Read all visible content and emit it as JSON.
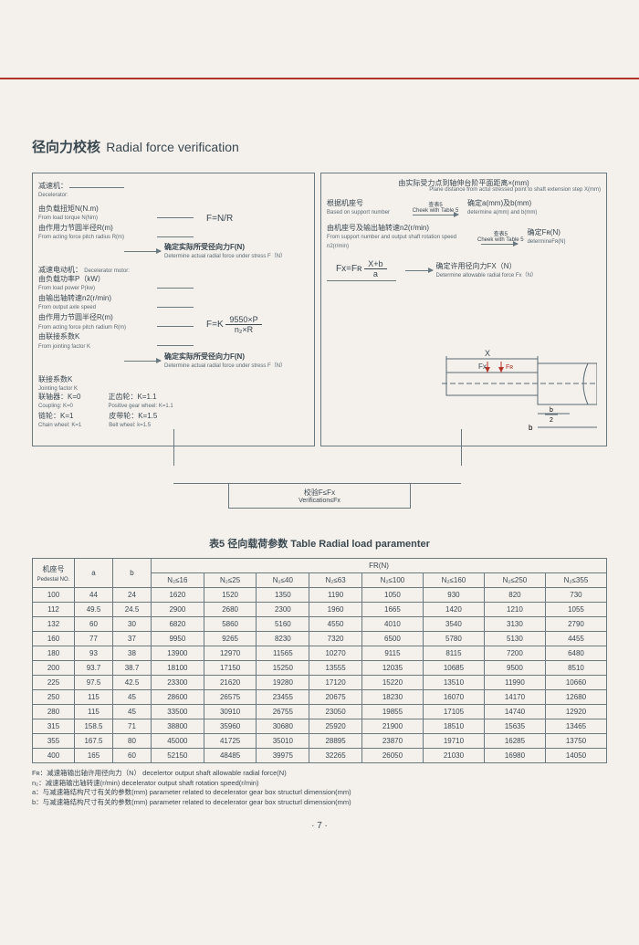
{
  "title_cn": "径向力校核",
  "title_en": "Radial force verification",
  "left": {
    "decel": "减速机：",
    "decel_en": "Decelerator:",
    "load_torque": "由负载扭矩N(N.m)",
    "load_torque_en": "From load torque N(Nm)",
    "pitch_radius": "由作用力节圆半径R(m)",
    "pitch_radius_en": "From acting force pitch radius R(m)",
    "eq_fnr": "F=N/R",
    "determine_f": "确定实际所受径向力F(N)",
    "determine_f_en": "Determine actual radial force under stress F（N）",
    "decel_motor": "减速电动机：",
    "decel_motor_en": "Decelerator motor:",
    "load_power": "由负载功率P（kW）",
    "load_power_en": "From load power P(kw)",
    "axle_speed": "由输出轴转速n2(r/min)",
    "axle_speed_en": "From output axle speed",
    "pitch_radius2": "由作用力节圆半径R(m)",
    "pitch_radius2_en": "From acting force pitch radium R(m)",
    "joint_k": "由联接系数K",
    "joint_k_en": "From jointing factor K",
    "eq_fk": "F=K",
    "eq_fk_num": "9550×P",
    "eq_fk_den": "n₂×R",
    "joint_head": "联接系数K",
    "joint_head_en": "Jointing factor K",
    "coupling": "联轴器：K=0",
    "coupling_en": "Coupling: K=0",
    "chain": "链轮：K=1",
    "chain_en": "Chain wheel: K=1",
    "gear": "正齿轮：K=1.1",
    "gear_en": "Positive gear wheel: K=1.1",
    "belt": "皮带轮：K=1.5",
    "belt_en": "Belt wheel: k=1.5"
  },
  "right": {
    "plane_cn": "由实际受力点到轴伸台阶平面距离×(mm)",
    "plane_en": "Plane distance from actul stressed point to shaft extension step X(mm)",
    "check5": "查表5",
    "check5_en": "Cheek with Table 5",
    "support_no": "根据机座号",
    "support_no_en": "Based on support number",
    "det_ab": "确定a(mm)及b(mm)",
    "det_ab_en": "determine a(mm) and b(mm)",
    "support_speed": "由机座号及输出轴转速n2(r/min)",
    "support_speed_en": "From support number and output shaft rotation speed n2(r/min)",
    "det_frn": "确定Fʀ(N)",
    "det_frn_en": "determineFʀ(N)",
    "eq_fx_lhs": "Fx=Fʀ",
    "eq_fx_num": "X+b",
    "eq_fx_den": "a",
    "det_allow": "确定许用径向力FX（N）",
    "det_allow_en": "Determine allowable radial force Fx（N）",
    "diag_x": "X",
    "diag_fx": "Fx",
    "diag_fr": "Fʀ",
    "diag_b2": "b/2",
    "diag_b": "b"
  },
  "verify": "校验F≤Fx",
  "verify_en": "Verification≤Fx",
  "table_title": "表5 径向载荷参数 Table Radial load paramenter",
  "table": {
    "cols_head1": "机座号",
    "cols_head1_en": "Pedestal NO.",
    "col_a": "a",
    "col_b": "b",
    "col_fr": "FR(N)",
    "n_cols": [
      "N₂≤16",
      "N₂≤25",
      "N₂≤40",
      "N₂≤63",
      "N₂≤100",
      "N₂≤160",
      "N₂≤250",
      "N₂≤355"
    ],
    "rows": [
      [
        "100",
        "44",
        "24",
        "1620",
        "1520",
        "1350",
        "1190",
        "1050",
        "930",
        "820",
        "730"
      ],
      [
        "112",
        "49.5",
        "24.5",
        "2900",
        "2680",
        "2300",
        "1960",
        "1665",
        "1420",
        "1210",
        "1055"
      ],
      [
        "132",
        "60",
        "30",
        "6820",
        "5860",
        "5160",
        "4550",
        "4010",
        "3540",
        "3130",
        "2790"
      ],
      [
        "160",
        "77",
        "37",
        "9950",
        "9265",
        "8230",
        "7320",
        "6500",
        "5780",
        "5130",
        "4455"
      ],
      [
        "180",
        "93",
        "38",
        "13900",
        "12970",
        "11565",
        "10270",
        "9115",
        "8115",
        "7200",
        "6480"
      ],
      [
        "200",
        "93.7",
        "38.7",
        "18100",
        "17150",
        "15250",
        "13555",
        "12035",
        "10685",
        "9500",
        "8510"
      ],
      [
        "225",
        "97.5",
        "42.5",
        "23300",
        "21620",
        "19280",
        "17120",
        "15220",
        "13510",
        "11990",
        "10660"
      ],
      [
        "250",
        "115",
        "45",
        "28600",
        "26575",
        "23455",
        "20675",
        "18230",
        "16070",
        "14170",
        "12680"
      ],
      [
        "280",
        "115",
        "45",
        "33500",
        "30910",
        "26755",
        "23050",
        "19855",
        "17105",
        "14740",
        "12920"
      ],
      [
        "315",
        "158.5",
        "71",
        "38800",
        "35960",
        "30680",
        "25920",
        "21900",
        "18510",
        "15635",
        "13465"
      ],
      [
        "355",
        "167.5",
        "80",
        "45000",
        "41725",
        "35010",
        "28895",
        "23870",
        "19710",
        "16285",
        "13750"
      ],
      [
        "400",
        "165",
        "60",
        "52150",
        "48485",
        "39975",
        "32265",
        "26050",
        "21030",
        "16980",
        "14050"
      ]
    ]
  },
  "notes": {
    "n1": "Fʀ：减速箱输出轴许用径向力（N） decelertor output shaft allowable radial force(N)",
    "n2": "n₂：减速箱输出轴转速(r/min)        decelerator output shaft rotation speed(r/min)",
    "n3": "a：与减速箱结构尺寸有关的参数(mm)  parameter related to decelerator gear box structurl dimension(mm)",
    "n4": "b：与减速箱结构尺寸有关的参数(mm)  parameter related to decelerator gear box structurl dimension(mm)"
  },
  "page_num": "· 7 ·"
}
